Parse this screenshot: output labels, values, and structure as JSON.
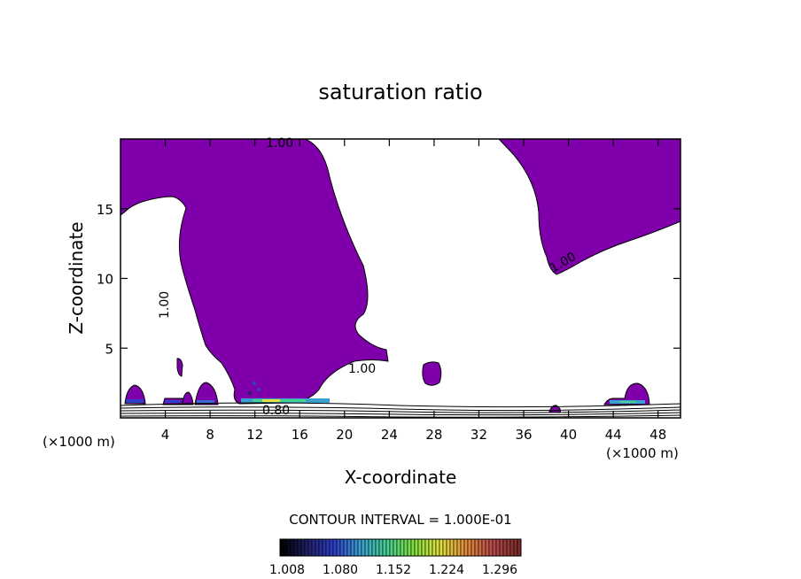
{
  "chart_data": {
    "type": "contour",
    "title": "saturation ratio",
    "xlabel": "X-coordinate",
    "ylabel": "Z-coordinate",
    "x_unit_left": "(×1000 m)",
    "x_unit_right": "(×1000 m)",
    "xlim": [
      0,
      50
    ],
    "ylim": [
      0,
      20
    ],
    "xticks": [
      4,
      8,
      12,
      16,
      20,
      24,
      28,
      32,
      36,
      40,
      44,
      48
    ],
    "yticks": [
      5,
      10,
      15
    ],
    "contour_labels": [
      "1.00",
      "1.00",
      "1.00",
      "1.00",
      "0.80"
    ],
    "contour_interval_text": "CONTOUR INTERVAL = 1.000E-01",
    "colorbar": {
      "ticks": [
        "1.008",
        "1.080",
        "1.152",
        "1.224",
        "1.296"
      ],
      "colors": [
        "#000000",
        "#20206a",
        "#2f40c8",
        "#3aa0d0",
        "#45d090",
        "#80e040",
        "#e0e040",
        "#e08a3a",
        "#b84a4a",
        "#7a2a2a"
      ]
    },
    "fill_color": "#7f00aa"
  }
}
